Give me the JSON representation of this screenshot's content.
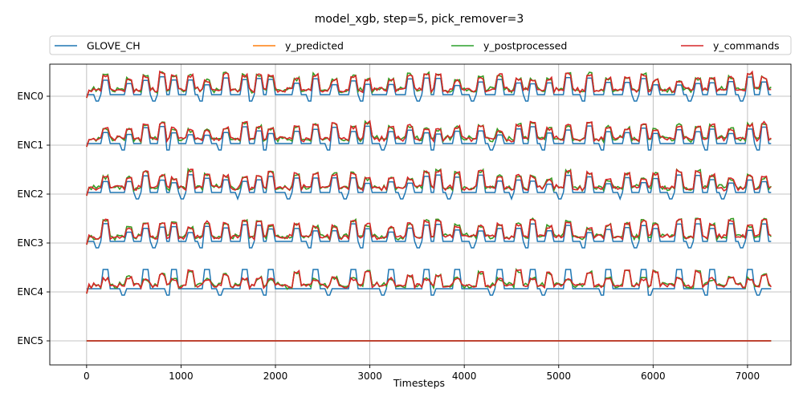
{
  "chart_data": {
    "type": "line",
    "title": "model_xgb, step=5, pick_remover=3",
    "xlabel": "Timesteps",
    "ylabel": "",
    "xlim": [
      -390,
      7460
    ],
    "xticks": [
      0,
      1000,
      2000,
      3000,
      4000,
      5000,
      6000,
      7000
    ],
    "x_max": 7250,
    "grid": true,
    "legend_placement": "top, above plot, 4 columns",
    "y_categories": [
      "ENC0",
      "ENC1",
      "ENC2",
      "ENC3",
      "ENC4",
      "ENC5"
    ],
    "series": [
      {
        "name": "GLOVE_CH",
        "color": "#1f77b4"
      },
      {
        "name": "y_predicted",
        "color": "#ff7f0e"
      },
      {
        "name": "y_postprocessed",
        "color": "#2ca02c"
      },
      {
        "name": "y_commands",
        "color": "#d62728"
      }
    ],
    "event_times": [
      160,
      420,
      580,
      760,
      900,
      1060,
      1250,
      1450,
      1640,
      1780,
      1920,
      2180,
      2400,
      2600,
      2780,
      2950,
      3180,
      3380,
      3560,
      3700,
      3880,
      4130,
      4330,
      4540,
      4700,
      4870,
      5060,
      5300,
      5500,
      5690,
      5860,
      6000,
      6230,
      6430,
      6600,
      6780,
      6980,
      7150
    ]
  }
}
